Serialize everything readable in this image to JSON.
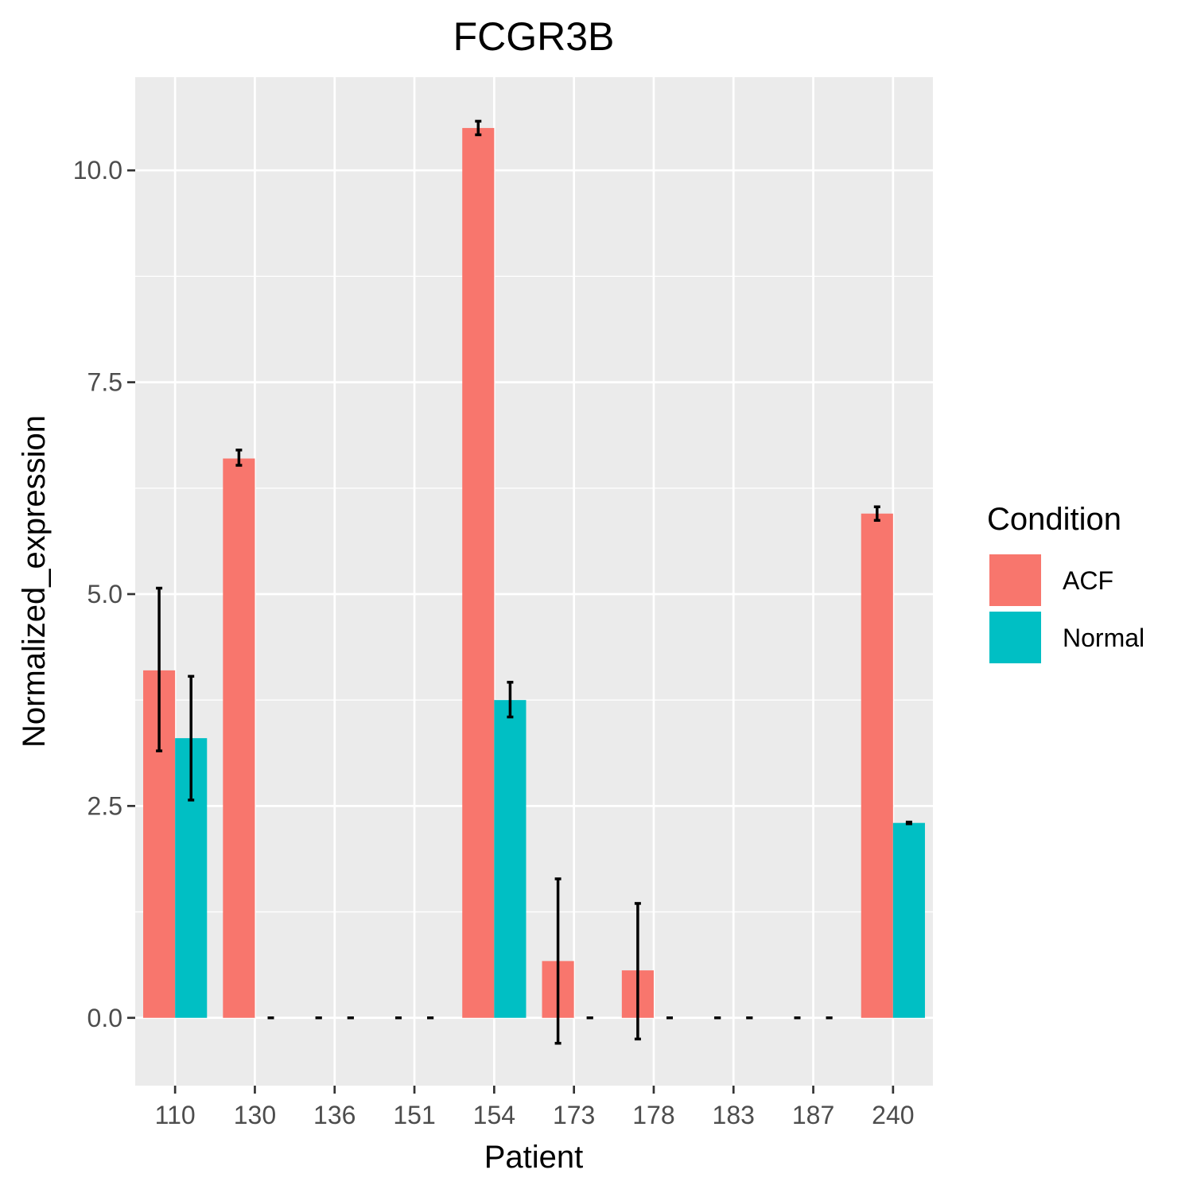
{
  "chart_data": {
    "type": "bar",
    "title": "FCGR3B",
    "xlabel": "Patient",
    "ylabel": "Normalized_expression",
    "categories": [
      "110",
      "130",
      "136",
      "151",
      "154",
      "173",
      "178",
      "183",
      "187",
      "240"
    ],
    "yticks": [
      "0.0",
      "2.5",
      "5.0",
      "7.5",
      "10.0"
    ],
    "ylim": [
      -0.8,
      11.1
    ],
    "grid": true,
    "legend_title": "Condition",
    "legend_position": "right",
    "series": [
      {
        "name": "ACF",
        "color": "#F8766D",
        "values": [
          4.1,
          6.6,
          0.0,
          0.0,
          10.5,
          0.67,
          0.56,
          0.0,
          0.0,
          5.95
        ],
        "err_low": [
          3.15,
          6.52,
          0.0,
          0.0,
          10.42,
          -0.3,
          -0.25,
          0.0,
          0.0,
          5.87
        ],
        "err_high": [
          5.07,
          6.7,
          0.0,
          0.0,
          10.58,
          1.64,
          1.35,
          0.0,
          0.0,
          6.03
        ]
      },
      {
        "name": "Normal",
        "color": "#00BFC4",
        "values": [
          3.3,
          0.0,
          0.0,
          0.0,
          3.75,
          0.0,
          0.0,
          0.0,
          0.0,
          2.3
        ],
        "err_low": [
          2.57,
          0.0,
          0.0,
          0.0,
          3.55,
          0.0,
          0.0,
          0.0,
          0.0,
          2.29
        ],
        "err_high": [
          4.03,
          0.0,
          0.0,
          0.0,
          3.96,
          0.0,
          0.0,
          0.0,
          0.0,
          2.31
        ]
      }
    ]
  }
}
